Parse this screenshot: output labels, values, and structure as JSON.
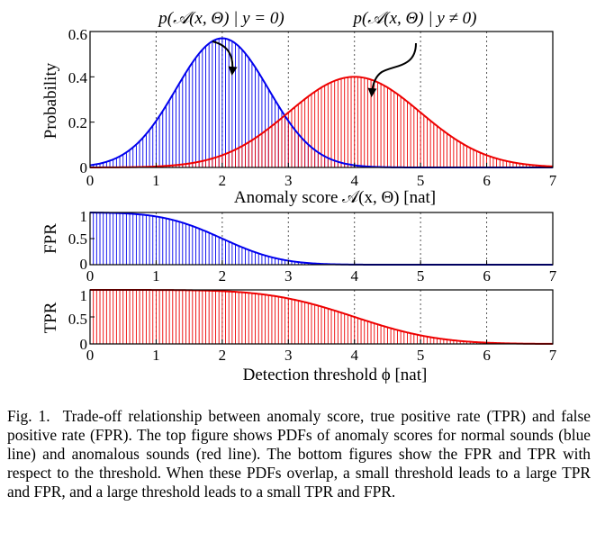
{
  "chart_data": [
    {
      "type": "bar",
      "id": "pdf",
      "xlabel": "Anomaly score 𝒜(x, Θ) [nat]",
      "ylabel": "Probability",
      "xlim": [
        0,
        7
      ],
      "ylim": [
        0,
        0.6
      ],
      "xticks": [
        "0",
        "1",
        "2",
        "3",
        "4",
        "5",
        "6",
        "7"
      ],
      "yticks": [
        "0",
        "0.2",
        "0.4",
        "0.6"
      ],
      "grid": "x-major",
      "series": [
        {
          "name": "p(𝒜(x, Θ) | y = 0)",
          "color": "#0000ee",
          "distribution": "normal",
          "mean": 2.0,
          "sd": 0.7,
          "peak": 0.57
        },
        {
          "name": "p(𝒜(x, Θ) | y ≠ 0)",
          "color": "#ee0000",
          "distribution": "normal",
          "mean": 4.0,
          "sd": 1.0,
          "peak": 0.4
        }
      ]
    },
    {
      "type": "bar",
      "id": "fpr",
      "xlabel": "",
      "ylabel": "FPR",
      "xlim": [
        0,
        7
      ],
      "ylim": [
        0,
        1
      ],
      "xticks": [
        "0",
        "1",
        "2",
        "3",
        "4",
        "5",
        "6",
        "7"
      ],
      "yticks": [
        "0",
        "0.5",
        "1"
      ],
      "grid": "x-major",
      "series": [
        {
          "name": "FPR",
          "color": "#0000ee",
          "distribution": "normal-survival",
          "mean": 2.0,
          "sd": 0.7
        }
      ]
    },
    {
      "type": "bar",
      "id": "tpr",
      "xlabel": "Detection threshold ϕ [nat]",
      "ylabel": "TPR",
      "xlim": [
        0,
        7
      ],
      "ylim": [
        0,
        1
      ],
      "xticks": [
        "0",
        "1",
        "2",
        "3",
        "4",
        "5",
        "6",
        "7"
      ],
      "yticks": [
        "0",
        "0.5",
        "1"
      ],
      "grid": "x-major",
      "series": [
        {
          "name": "TPR",
          "color": "#ee0000",
          "distribution": "normal-survival",
          "mean": 4.0,
          "sd": 1.0
        }
      ]
    }
  ],
  "caption": {
    "label": "Fig. 1.",
    "text": "Trade-off relationship between anomaly score, true positive rate (TPR) and false positive rate (FPR). The top figure shows PDFs of anomaly scores for normal sounds (blue line) and anomalous sounds (red line). The bottom figures show the FPR and TPR with respect to the threshold. When these PDFs overlap, a small threshold leads to a large TPR and FPR, and a large threshold leads to a small TPR and FPR."
  }
}
